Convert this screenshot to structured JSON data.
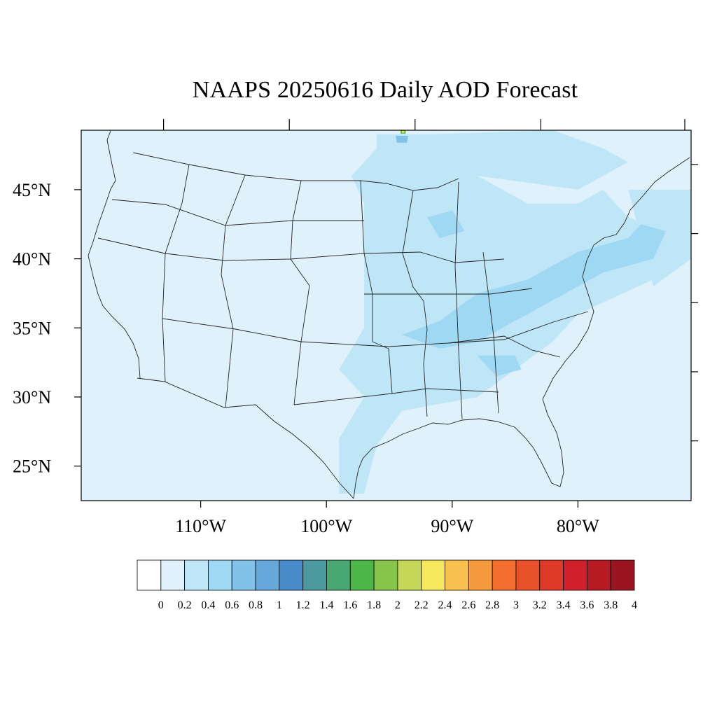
{
  "title": "NAAPS 20250616 Daily AOD Forecast",
  "map": {
    "projection": "cylindrical-equidistant",
    "lon_range": [
      -119.5,
      -71.0
    ],
    "lat_range": [
      22.5,
      49.3
    ],
    "lat_ticks": [
      {
        "value": 45,
        "label": "45°N"
      },
      {
        "value": 40,
        "label": "40°N"
      },
      {
        "value": 35,
        "label": "35°N"
      },
      {
        "value": 30,
        "label": "30°N"
      },
      {
        "value": 25,
        "label": "25°N"
      }
    ],
    "lon_ticks": [
      {
        "value": -110,
        "label": "110°W"
      },
      {
        "value": -100,
        "label": "100°W"
      },
      {
        "value": -90,
        "label": "90°W"
      },
      {
        "value": -80,
        "label": "80°W"
      }
    ],
    "background_aod": 0.1,
    "aod_regions": [
      {
        "name": "plains-smoke",
        "aod": 0.3,
        "lonlat": [
          [
            -98,
            46
          ],
          [
            -96,
            48
          ],
          [
            -92,
            48
          ],
          [
            -88,
            46
          ],
          [
            -84,
            44
          ],
          [
            -80,
            44
          ],
          [
            -78,
            45
          ],
          [
            -76,
            43
          ],
          [
            -73,
            42
          ],
          [
            -72,
            40
          ],
          [
            -74,
            38.5
          ],
          [
            -80,
            36
          ],
          [
            -82,
            34
          ],
          [
            -85,
            32
          ],
          [
            -88,
            30
          ],
          [
            -91,
            29.5
          ],
          [
            -94,
            29
          ],
          [
            -96,
            26.5
          ],
          [
            -97,
            23
          ],
          [
            -99,
            23
          ],
          [
            -99,
            27
          ],
          [
            -97,
            30
          ],
          [
            -99,
            32
          ],
          [
            -97,
            35
          ],
          [
            -97,
            40
          ],
          [
            -97,
            44
          ]
        ]
      },
      {
        "name": "north-smoke",
        "aod": 0.3,
        "lonlat": [
          [
            -96,
            49
          ],
          [
            -92,
            49
          ],
          [
            -82,
            49.3
          ],
          [
            -78,
            48
          ],
          [
            -76,
            47
          ],
          [
            -80,
            45
          ],
          [
            -88,
            46
          ],
          [
            -96,
            47
          ]
        ]
      },
      {
        "name": "atlantic-smoke",
        "aod": 0.3,
        "lonlat": [
          [
            -76,
            45
          ],
          [
            -71,
            45
          ],
          [
            -71,
            40
          ],
          [
            -74,
            38
          ]
        ]
      },
      {
        "name": "wisconsin-core",
        "aod": 0.4,
        "lonlat": [
          [
            -92,
            43
          ],
          [
            -90,
            43.5
          ],
          [
            -89,
            42
          ],
          [
            -91,
            41.5
          ]
        ]
      },
      {
        "name": "ohio-valley-core",
        "aod": 0.4,
        "lonlat": [
          [
            -91,
            35.5
          ],
          [
            -88,
            37.5
          ],
          [
            -84,
            38.5
          ],
          [
            -80,
            40.5
          ],
          [
            -76,
            41.5
          ],
          [
            -75,
            42.5
          ],
          [
            -73,
            42
          ],
          [
            -74,
            40
          ],
          [
            -78,
            39
          ],
          [
            -81,
            37.5
          ],
          [
            -85,
            35.5
          ],
          [
            -88,
            34
          ],
          [
            -91,
            33.5
          ],
          [
            -94,
            34.5
          ]
        ]
      },
      {
        "name": "alabama-core",
        "aod": 0.4,
        "lonlat": [
          [
            -88,
            33
          ],
          [
            -85,
            33
          ],
          [
            -84.5,
            32
          ],
          [
            -86.5,
            31.5
          ]
        ]
      },
      {
        "name": "minnesota-hotspot-a",
        "aod": 0.6,
        "lonlat": [
          [
            -94.5,
            48.9
          ],
          [
            -93.5,
            48.9
          ],
          [
            -93.6,
            48.4
          ],
          [
            -94.4,
            48.4
          ]
        ]
      },
      {
        "name": "minnesota-hotspot-b",
        "aod": 1.6,
        "lonlat": [
          [
            -94.1,
            49.3
          ],
          [
            -93.7,
            49.3
          ],
          [
            -93.7,
            49.05
          ],
          [
            -94.1,
            49.05
          ]
        ]
      },
      {
        "name": "minnesota-hotspot-c",
        "aod": 2.2,
        "lonlat": [
          [
            -94.0,
            49.25
          ],
          [
            -93.8,
            49.25
          ],
          [
            -93.8,
            49.12
          ],
          [
            -94.0,
            49.12
          ]
        ]
      }
    ]
  },
  "colorbar": {
    "levels": [
      "0",
      "0.2",
      "0.4",
      "0.6",
      "0.8",
      "1",
      "1.2",
      "1.4",
      "1.6",
      "1.8",
      "2",
      "2.2",
      "2.4",
      "2.6",
      "2.8",
      "3",
      "3.2",
      "3.4",
      "3.6",
      "3.8",
      "4"
    ],
    "colors": [
      "#ffffff",
      "#dff2fb",
      "#bfe6f7",
      "#9fd8f3",
      "#82c1e8",
      "#67a8db",
      "#4a8cc9",
      "#4a9aa0",
      "#49a872",
      "#4cb648",
      "#86c44b",
      "#c5d757",
      "#f5e85f",
      "#f8c04d",
      "#f59b3d",
      "#f26f2e",
      "#e8512a",
      "#df3a28",
      "#d0202a",
      "#b71c25",
      "#9a1520"
    ]
  }
}
